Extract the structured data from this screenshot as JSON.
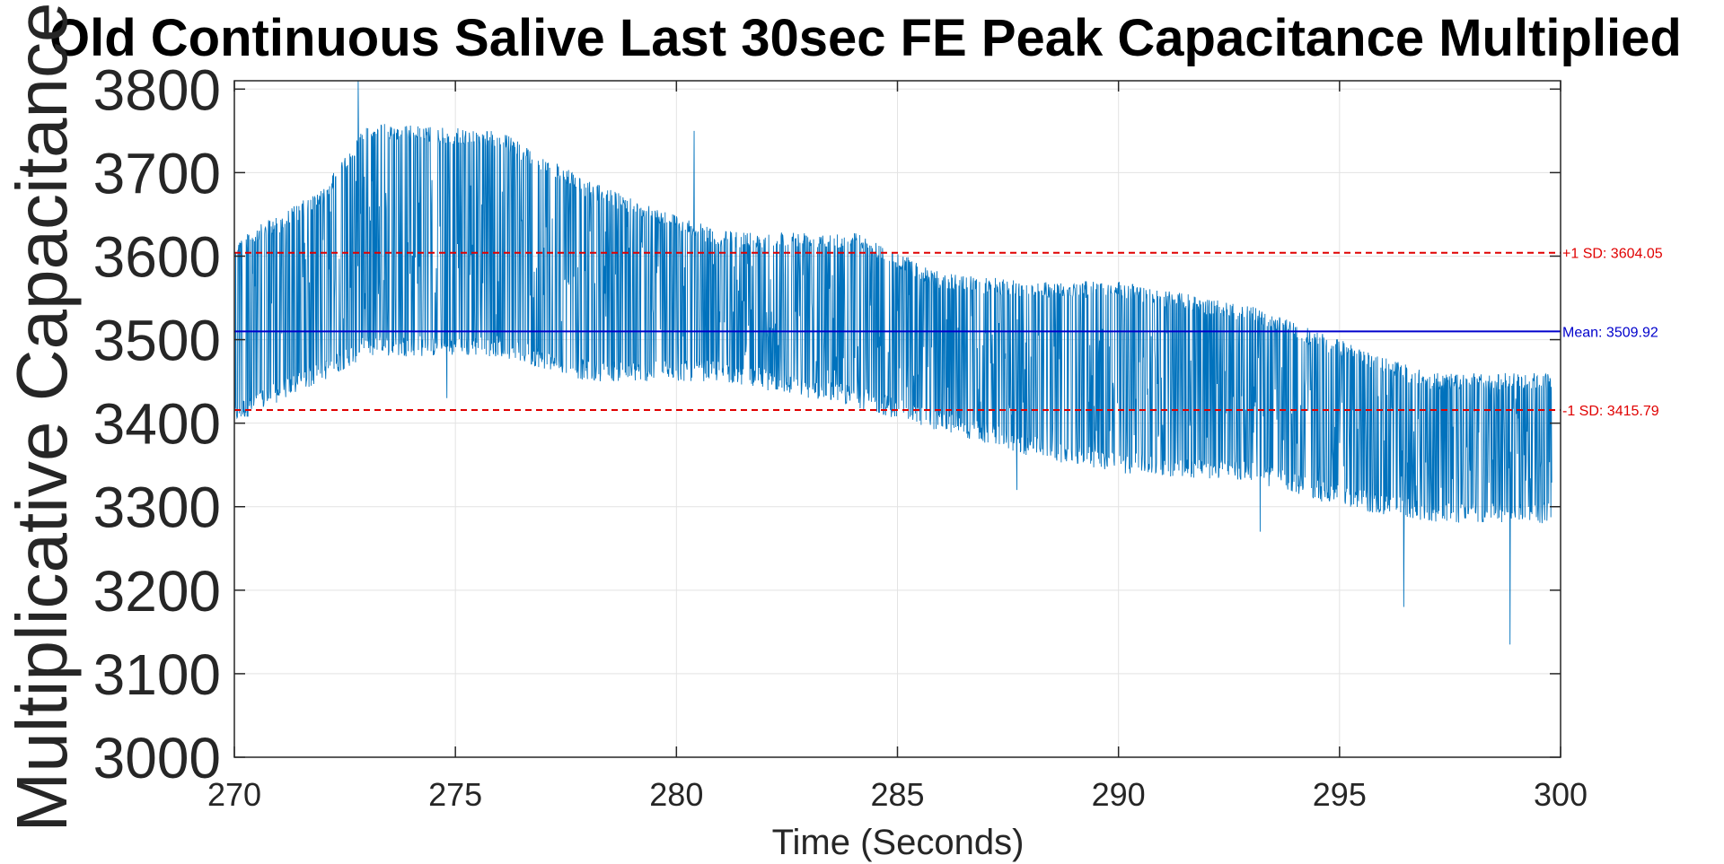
{
  "chart_data": {
    "type": "line",
    "title": "Old Continuous Salive Last 30sec FE Peak Capacitance Multiplied",
    "xlabel": "Time (Seconds)",
    "ylabel": "Multiplicative Capacitance",
    "xlim": [
      270,
      300
    ],
    "ylim": [
      3000,
      3810
    ],
    "x_ticks": [
      270,
      275,
      280,
      285,
      290,
      295,
      300
    ],
    "y_ticks": [
      3000,
      3100,
      3200,
      3300,
      3400,
      3500,
      3600,
      3700,
      3800
    ],
    "grid": true,
    "colors": {
      "series": "#0072BD",
      "mean": "#0000CC",
      "sd": "#E00000",
      "grid": "#E3E3E3",
      "axis": "#262626"
    },
    "series": [
      {
        "name": "",
        "x_start": 270,
        "x_end": 299.8,
        "envelope": [
          {
            "t": 270.0,
            "lo": 3400,
            "hi": 3620,
            "base": 3560
          },
          {
            "t": 272.0,
            "lo": 3450,
            "hi": 3680,
            "base": 3580
          },
          {
            "t": 273.0,
            "lo": 3480,
            "hi": 3760,
            "base": 3620
          },
          {
            "t": 276.0,
            "lo": 3480,
            "hi": 3750,
            "base": 3610
          },
          {
            "t": 278.0,
            "lo": 3450,
            "hi": 3690,
            "base": 3590
          },
          {
            "t": 281.0,
            "lo": 3450,
            "hi": 3630,
            "base": 3540
          },
          {
            "t": 284.0,
            "lo": 3420,
            "hi": 3630,
            "base": 3520
          },
          {
            "t": 286.0,
            "lo": 3390,
            "hi": 3580,
            "base": 3480
          },
          {
            "t": 288.0,
            "lo": 3360,
            "hi": 3570,
            "base": 3460
          },
          {
            "t": 290.0,
            "lo": 3340,
            "hi": 3570,
            "base": 3450
          },
          {
            "t": 293.0,
            "lo": 3330,
            "hi": 3540,
            "base": 3430
          },
          {
            "t": 295.0,
            "lo": 3300,
            "hi": 3500,
            "base": 3400
          },
          {
            "t": 297.0,
            "lo": 3280,
            "hi": 3460,
            "base": 3370
          },
          {
            "t": 299.8,
            "lo": 3280,
            "hi": 3460,
            "base": 3380
          }
        ],
        "spikes": [
          {
            "t": 272.8,
            "v": 3810
          },
          {
            "t": 274.8,
            "v": 3430
          },
          {
            "t": 280.4,
            "v": 3750
          },
          {
            "t": 287.7,
            "v": 3320
          },
          {
            "t": 293.2,
            "v": 3270
          },
          {
            "t": 296.45,
            "v": 3180
          },
          {
            "t": 298.85,
            "v": 3135
          }
        ]
      }
    ],
    "reference_lines": [
      {
        "label": "+1 SD: 3604.05",
        "value": 3604.05,
        "style": "dashed",
        "color": "#E00000"
      },
      {
        "label": "Mean: 3509.92",
        "value": 3509.92,
        "style": "solid",
        "color": "#0000CC"
      },
      {
        "label": "-1 SD: 3415.79",
        "value": 3415.79,
        "style": "dashed",
        "color": "#E00000"
      }
    ]
  }
}
